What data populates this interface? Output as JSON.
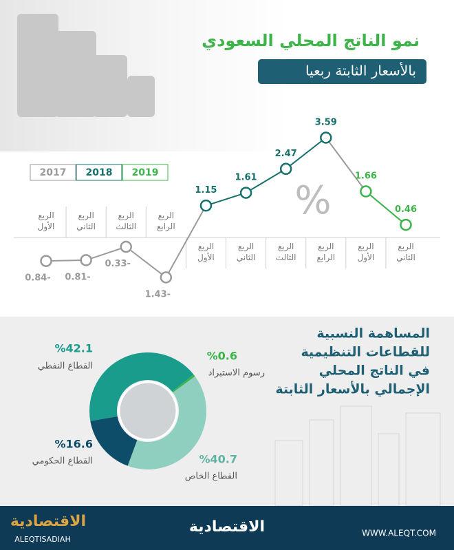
{
  "header": {
    "title": "نمو الناتج المحلي السعودي",
    "subtitle": "بالأسعار الثابتة ربعيا"
  },
  "chart_data": [
    {
      "type": "line",
      "categories": [
        "الربع الأول",
        "الربع الثاني",
        "الربع الثالث",
        "الربع الرابع",
        "الربع الأول",
        "الربع الثاني",
        "الربع الثالث",
        "الربع الرابع",
        "الربع الأول",
        "الربع الثاني"
      ],
      "values": [
        -0.84,
        -0.81,
        -0.33,
        -1.43,
        1.15,
        1.61,
        2.47,
        3.59,
        1.66,
        0.46
      ],
      "value_labels": [
        "0.84-",
        "0.81-",
        "0.33-",
        "1.43-",
        "1.15",
        "1.61",
        "2.47",
        "3.59",
        "1.66",
        "0.46"
      ],
      "point_colors": [
        "#9a9a9a",
        "#9a9a9a",
        "#9a9a9a",
        "#9a9a9a",
        "#16706b",
        "#16706b",
        "#16706b",
        "#16706b",
        "#3cb44a",
        "#3cb44a"
      ],
      "legend": [
        {
          "name": "2017",
          "color": "#9a9a9a"
        },
        {
          "name": "2018",
          "color": "#16706b"
        },
        {
          "name": "2019",
          "color": "#3cb44a"
        }
      ],
      "annotation": "%"
    },
    {
      "type": "donut",
      "title_lines": [
        "المساهمة النسبية",
        "للقطاعات التنظيمية",
        "في الناتج المحلي",
        "الإجمالي بالأسعار الثابتة"
      ],
      "categories": [
        "القطاع النفطي",
        "رسوم الاستيراد",
        "القطاع الخاص",
        "القطاع الحكومي"
      ],
      "values": [
        42.1,
        0.6,
        40.7,
        16.6
      ],
      "value_labels": [
        "%42.1",
        "%0.6",
        "%40.7",
        "%16.6"
      ],
      "colors": [
        "#1a9c8c",
        "#3cb44a",
        "#8fcfc0",
        "#0e4d6a"
      ]
    }
  ],
  "footer": {
    "brand": "الاقتصادية",
    "brand_latin": "ALEQTISADIAH",
    "center_brand": "الاقتصادية",
    "url": "WWW.ALEQT.COM"
  }
}
